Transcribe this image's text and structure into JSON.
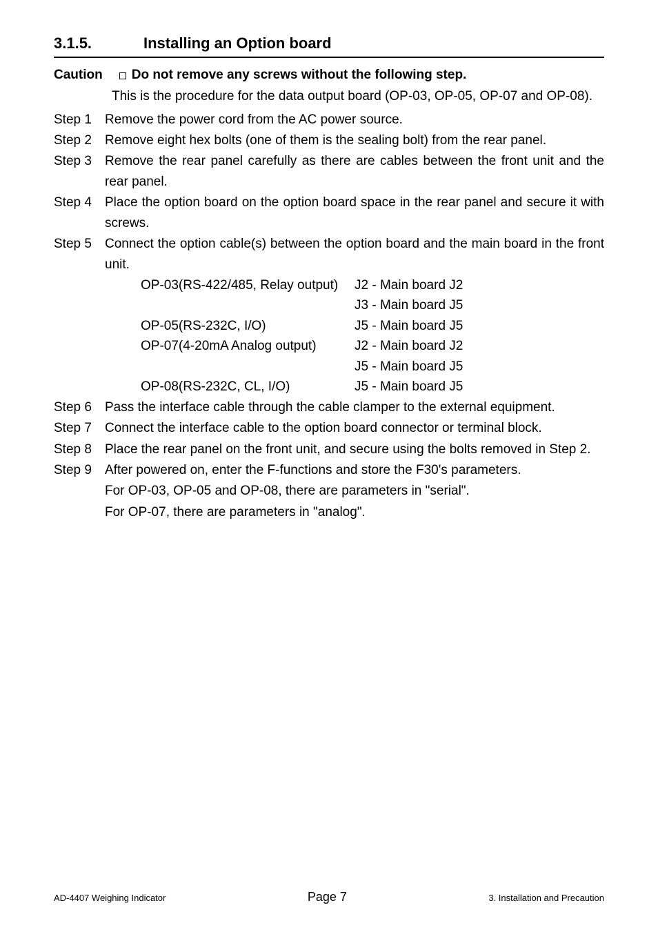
{
  "heading": {
    "number": "3.1.5.",
    "title": "Installing an Option board"
  },
  "caution": {
    "label": "Caution",
    "text": "Do not remove any screws without the following step."
  },
  "intro": "This is the procedure for the data output board (OP-03, OP-05, OP-07 and OP-08).",
  "steps": [
    {
      "label": "Step 1",
      "body": "Remove the power cord from the AC power source."
    },
    {
      "label": "Step 2",
      "body": "Remove eight hex bolts (one of them is the sealing bolt) from the rear panel."
    },
    {
      "label": "Step 3",
      "body": "Remove the rear panel carefully as there are cables between the front unit and the rear panel."
    },
    {
      "label": "Step 4",
      "body": "Place the option board on the option board space in the rear panel and secure it with screws."
    },
    {
      "label": "Step 5",
      "body": "Connect the option cable(s) between the option board and the main board in the front unit."
    }
  ],
  "connections": [
    {
      "left": "OP-03(RS-422/485, Relay output)",
      "right": "J2 - Main board J2"
    },
    {
      "left": "",
      "right": "J3 - Main board J5"
    },
    {
      "left": "OP-05(RS-232C, I/O)",
      "right": "J5 - Main board J5"
    },
    {
      "left": "OP-07(4-20mA Analog output)",
      "right": "J2 - Main board J2"
    },
    {
      "left": "",
      "right": "J5 - Main board J5"
    },
    {
      "left": "OP-08(RS-232C, CL, I/O)",
      "right": "J5 - Main board J5"
    }
  ],
  "steps2": [
    {
      "label": "Step 6",
      "body": "Pass the interface cable through the cable clamper to the external equipment."
    },
    {
      "label": "Step 7",
      "body": "Connect the interface cable to the option board connector or terminal block."
    },
    {
      "label": "Step 8",
      "body": "Place the rear panel on the front unit, and secure using the bolts removed in Step 2."
    },
    {
      "label": "Step 9",
      "body": "After powered on, enter the F-functions and store the F30's parameters."
    }
  ],
  "trailing": [
    "For OP-03, OP-05 and OP-08, there are parameters in \"serial\".",
    "For OP-07, there are parameters in \"analog\"."
  ],
  "footer": {
    "left": "AD-4407 Weighing Indicator",
    "center": "Page 7",
    "right": "3. Installation and Precaution"
  }
}
